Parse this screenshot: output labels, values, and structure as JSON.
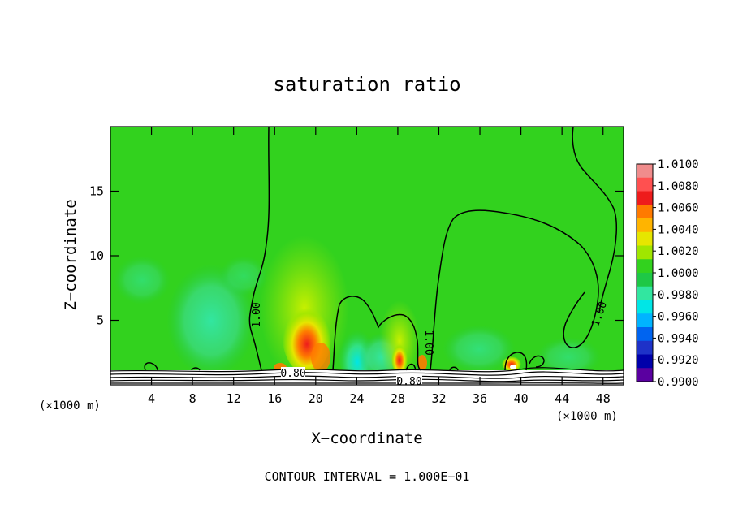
{
  "chart_data": {
    "type": "heatmap",
    "title": "saturation ratio",
    "xlabel": "X−coordinate",
    "ylabel": "Z−coordinate",
    "x_unit_left": "(×1000 m)",
    "x_unit_right": "(×1000 m)",
    "footer": "CONTOUR INTERVAL = 1.000E−01",
    "xlim": [
      0,
      50
    ],
    "ylim": [
      0,
      20
    ],
    "x_ticks": [
      4,
      8,
      12,
      16,
      20,
      24,
      28,
      32,
      36,
      40,
      44,
      48
    ],
    "y_ticks": [
      5,
      10,
      15
    ],
    "colorbar": {
      "levels": [
        "1.0100",
        "1.0080",
        "1.0060",
        "1.0040",
        "1.0020",
        "1.0000",
        "0.9980",
        "0.9960",
        "0.9940",
        "0.9920",
        "0.9900"
      ],
      "colors": [
        "#f08c8c",
        "#ff5050",
        "#ee1c1c",
        "#ff7a00",
        "#ffb400",
        "#e6e600",
        "#a0e600",
        "#32d21e",
        "#1ec846",
        "#32e6a0",
        "#00e6e6",
        "#00b4ff",
        "#0064f0",
        "#1e32c8",
        "#0000aa",
        "#5a00a0"
      ]
    },
    "contour_labels": [
      {
        "text": "1.00",
        "x": 13.5,
        "z": 5.5
      },
      {
        "text": "1.00",
        "x": 31.0,
        "z": 3.0
      },
      {
        "text": "1.00",
        "x": 47.0,
        "z": 5.5
      },
      {
        "text": "0.80",
        "x": 17.0,
        "z": 0.8
      },
      {
        "text": "0.80",
        "x": 29.0,
        "z": 0.3
      }
    ]
  }
}
